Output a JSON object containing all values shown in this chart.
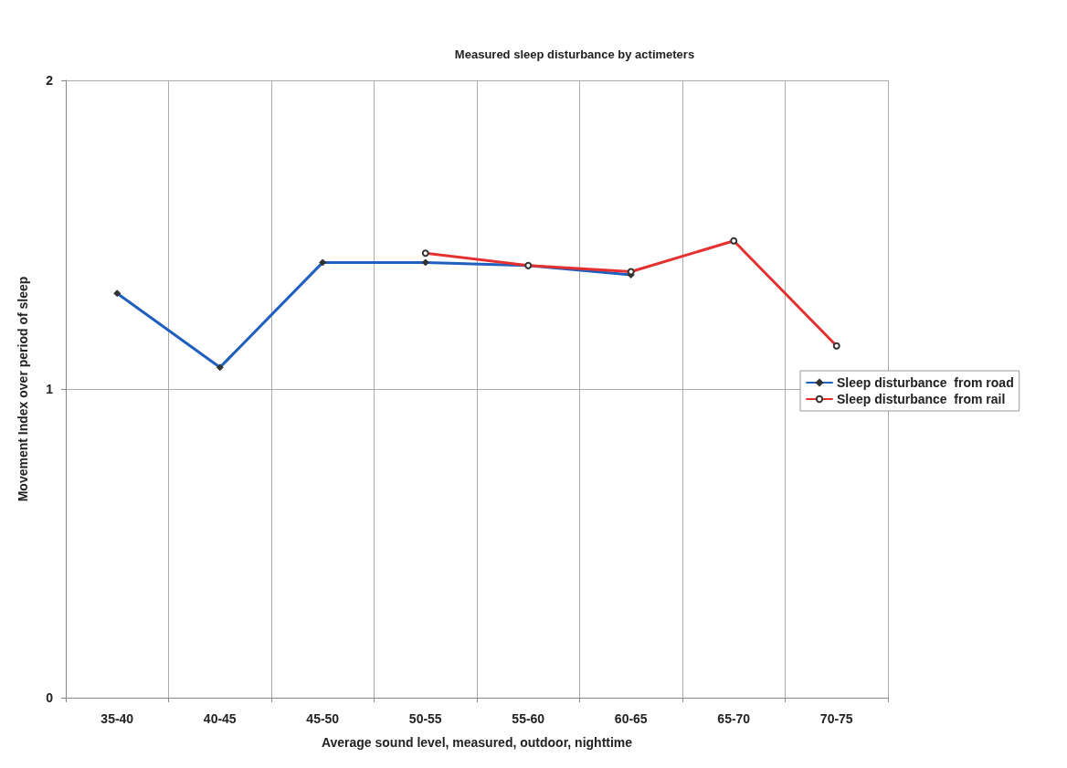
{
  "chart_data": {
    "type": "line",
    "title": "Measured sleep disturbance by actimeters",
    "xlabel": "Average sound level, measured, outdoor, nighttime",
    "ylabel": "Movement Index over period of sleep",
    "categories": [
      "35-40",
      "40-45",
      "45-50",
      "50-55",
      "55-60",
      "60-65",
      "65-70",
      "70-75"
    ],
    "series": [
      {
        "name": "Sleep disturbance  from road",
        "color": "#1f5fbf",
        "marker": "diamond",
        "values": [
          1.31,
          1.07,
          1.41,
          1.41,
          1.4,
          1.37,
          null,
          null
        ]
      },
      {
        "name": "Sleep disturbance  from rail",
        "color": "#e53030",
        "marker": "circle",
        "values": [
          null,
          null,
          null,
          1.44,
          1.4,
          1.38,
          1.48,
          1.14
        ]
      }
    ],
    "ylim": [
      0,
      2
    ],
    "yticks": [
      0,
      1,
      2
    ],
    "grid": true,
    "legend": "right",
    "line_style": "solid"
  }
}
